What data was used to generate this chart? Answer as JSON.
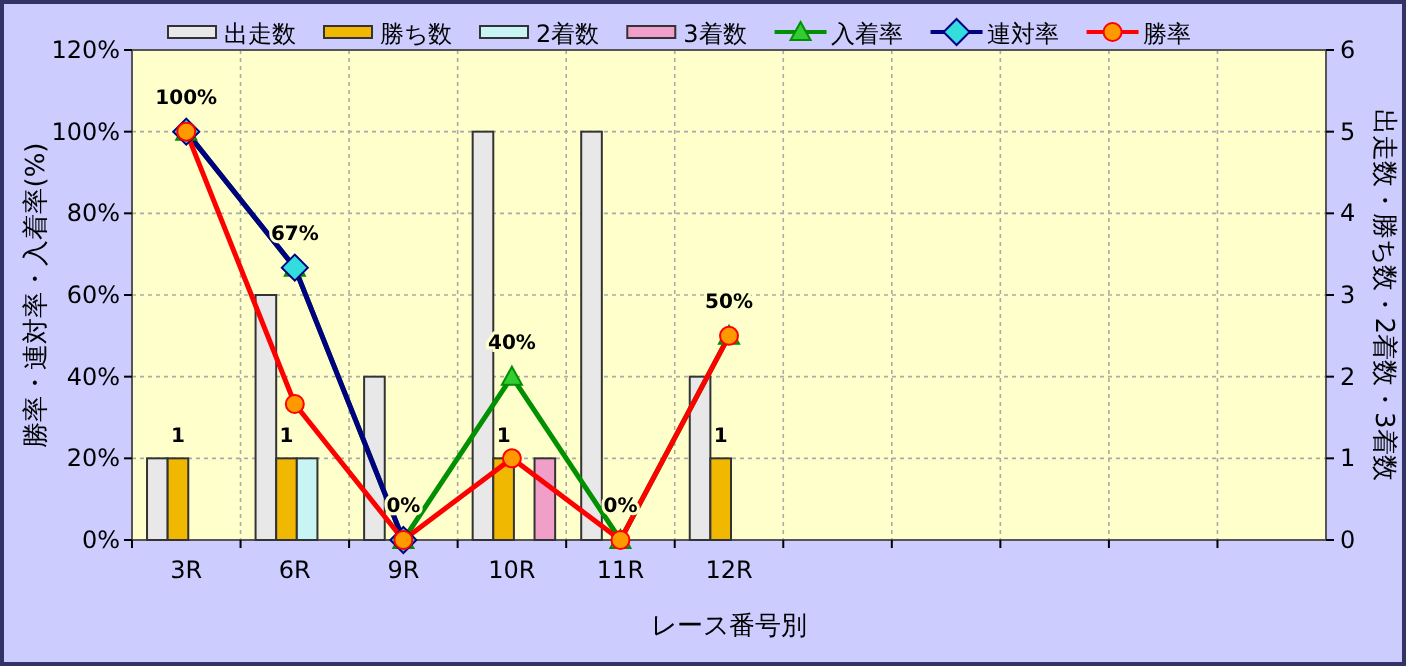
{
  "chart_data": {
    "type": "bar",
    "categories": [
      "3R",
      "6R",
      "9R",
      "10R",
      "11R",
      "12R",
      null,
      null,
      null,
      null,
      null
    ],
    "xlabel": "レース番号別",
    "ylabel": "勝率・連対率・入着率(%)",
    "y2label": "出走数・勝ち数・2着数・3着数",
    "ylim": [
      0,
      120
    ],
    "yticks": [
      {
        "value": 0,
        "label": "0%"
      },
      {
        "value": 20,
        "label": "20%"
      },
      {
        "value": 40,
        "label": "40%"
      },
      {
        "value": 60,
        "label": "60%"
      },
      {
        "value": 80,
        "label": "80%"
      },
      {
        "value": 100,
        "label": "100%"
      },
      {
        "value": 120,
        "label": "120%"
      }
    ],
    "y2lim": [
      0,
      6
    ],
    "y2ticks": [
      0,
      1,
      2,
      3,
      4,
      5,
      6
    ],
    "grid": true,
    "legend": "top",
    "series": [
      {
        "name": "出走数",
        "axis": "y2",
        "color": "#e8e8e8",
        "values": [
          1,
          3,
          2,
          5,
          5,
          2,
          null,
          null,
          null,
          null,
          null
        ]
      },
      {
        "name": "勝ち数",
        "axis": "y2",
        "color": "#f0b800",
        "values": [
          1,
          1,
          0,
          1,
          0,
          1,
          null,
          null,
          null,
          null,
          null
        ],
        "value_labels": [
          "1",
          "1",
          null,
          "1",
          null,
          "1",
          null,
          null,
          null,
          null,
          null
        ]
      },
      {
        "name": "2着数",
        "axis": "y2",
        "color": "#c8f4f4",
        "values": [
          0,
          1,
          0,
          0,
          0,
          0,
          null,
          null,
          null,
          null,
          null
        ]
      },
      {
        "name": "3着数",
        "axis": "y2",
        "color": "#f0a0c8",
        "values": [
          0,
          0,
          0,
          1,
          0,
          0,
          null,
          null,
          null,
          null,
          null
        ]
      },
      {
        "name": "入着率",
        "type": "line",
        "color": "#009000",
        "marker": "triangle",
        "values": [
          100,
          66.7,
          0,
          40,
          0,
          50,
          null,
          null,
          null,
          null,
          null
        ],
        "value_labels": [
          "100%",
          "67%",
          "0%",
          "40%",
          "0%",
          "50%",
          null,
          null,
          null,
          null,
          null
        ]
      },
      {
        "name": "連対率",
        "type": "line",
        "color": "#000080",
        "marker": "diamond",
        "values": [
          100,
          66.7,
          0,
          null,
          null,
          null,
          null,
          null,
          null,
          null,
          null
        ]
      },
      {
        "name": "勝率",
        "type": "line",
        "color": "#ff0000",
        "marker": "circle",
        "values": [
          100,
          33.3,
          0,
          20,
          0,
          50,
          null,
          null,
          null,
          null,
          null
        ]
      }
    ]
  }
}
